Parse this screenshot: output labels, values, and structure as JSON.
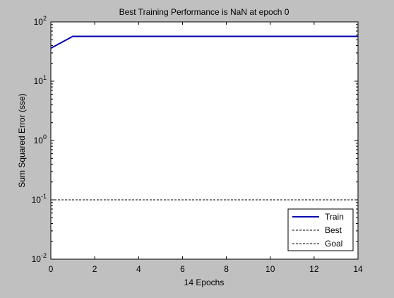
{
  "chart_data": {
    "type": "line",
    "title": "Best Training Performance is NaN at epoch 0",
    "xlabel": "14 Epochs",
    "ylabel": "Sum Squared Error  (sse)",
    "xlim": [
      0,
      14
    ],
    "ylim": [
      0.01,
      100
    ],
    "yscale": "log",
    "grid": false,
    "legend_position": "bottom-right",
    "xticks": [
      0,
      2,
      4,
      6,
      8,
      10,
      12,
      14
    ],
    "xtick_labels": [
      "0",
      "2",
      "4",
      "6",
      "8",
      "10",
      "12",
      "14"
    ],
    "yticks": [
      {
        "value": 100,
        "base": "10",
        "exp": "2"
      },
      {
        "value": 10,
        "base": "10",
        "exp": "1"
      },
      {
        "value": 1,
        "base": "10",
        "exp": "0"
      },
      {
        "value": 0.1,
        "base": "10",
        "exp": "-1"
      },
      {
        "value": 0.01,
        "base": "10",
        "exp": "-2"
      }
    ],
    "series": [
      {
        "name": "Train",
        "color": "#0000b0",
        "style": "solid",
        "x": [
          0,
          1,
          2,
          3,
          4,
          5,
          6,
          7,
          8,
          9,
          10,
          11,
          12,
          13,
          14
        ],
        "y": [
          36,
          57,
          57,
          57,
          57,
          57,
          57,
          57,
          57,
          57,
          57,
          57,
          57,
          57,
          57
        ]
      },
      {
        "name": "Best",
        "color": "#000000",
        "style": "dashed",
        "x": [],
        "y": []
      },
      {
        "name": "Goal",
        "color": "#000000",
        "style": "dashed",
        "x": [
          0,
          14
        ],
        "y": [
          0.1,
          0.1
        ]
      }
    ]
  }
}
